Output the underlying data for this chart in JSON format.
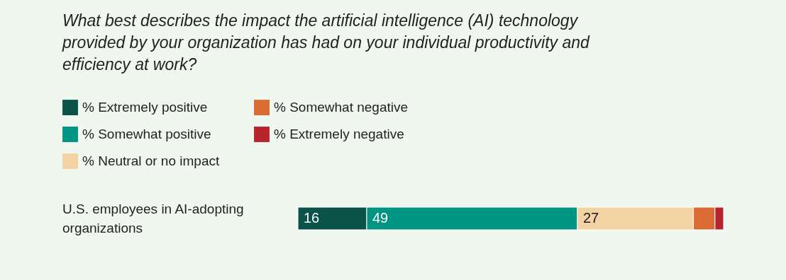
{
  "chart_data": {
    "type": "bar",
    "orientation": "horizontal",
    "stacked": true,
    "title": "What best describes the impact the artificial intelligence (AI) technology provided by your organization has had on your individual productivity and efficiency at work?",
    "categories": [
      "U.S. employees in AI-adopting organizations"
    ],
    "series": [
      {
        "name": "% Extremely positive",
        "color": "#0b5248",
        "values": [
          16
        ],
        "value_labels": [
          "16"
        ]
      },
      {
        "name": "% Somewhat positive",
        "color": "#009483",
        "values": [
          49
        ],
        "value_labels": [
          "49"
        ]
      },
      {
        "name": "% Neutral or no impact",
        "color": "#f3d3a3",
        "values": [
          27
        ],
        "value_labels": [
          "27"
        ]
      },
      {
        "name": "% Somewhat negative",
        "color": "#d96b33",
        "values": [
          5
        ],
        "value_labels": [
          null
        ]
      },
      {
        "name": "% Extremely negative",
        "color": "#b5252e",
        "values": [
          2
        ],
        "value_labels": [
          null
        ]
      }
    ],
    "legend": "top left"
  }
}
